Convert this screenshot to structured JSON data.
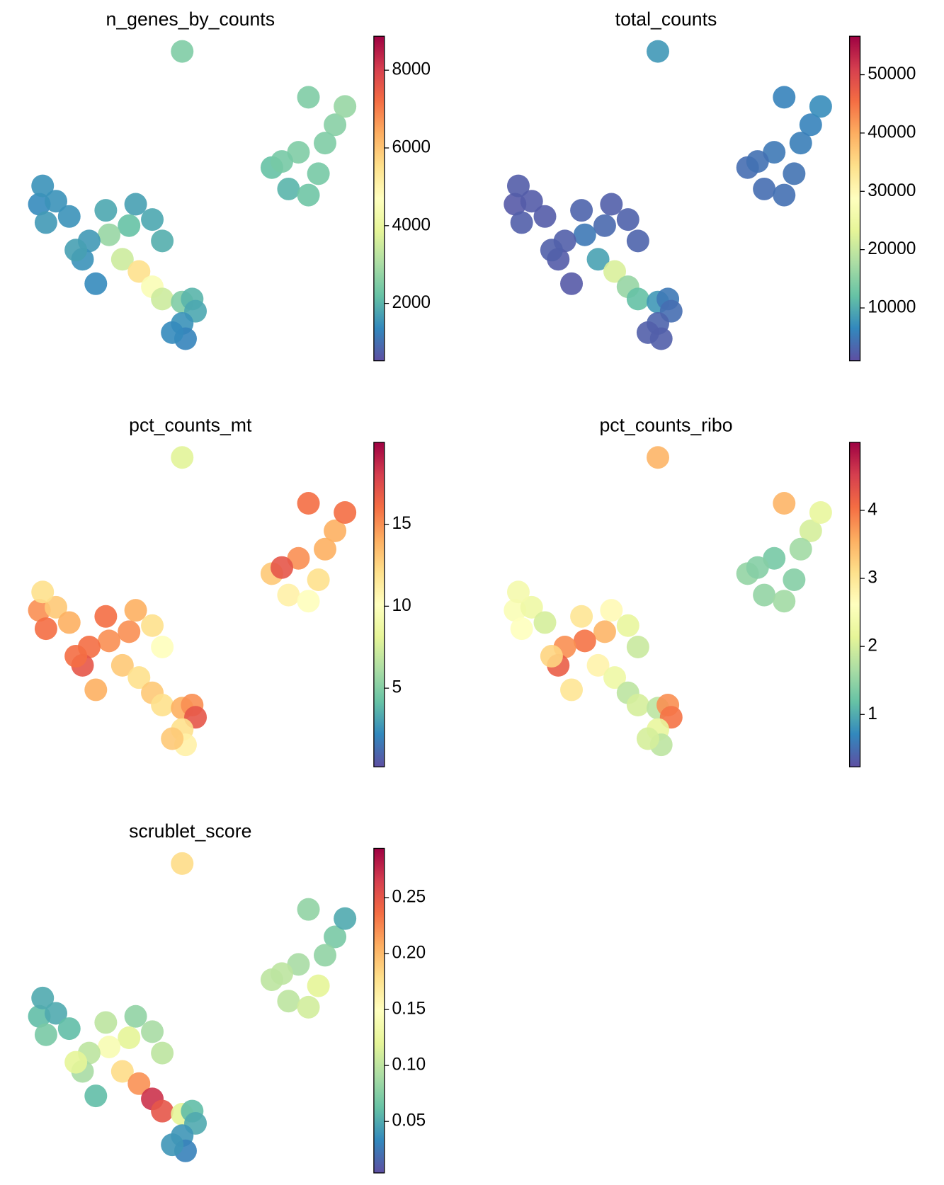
{
  "chart_data": [
    {
      "type": "scatter",
      "title": "n_genes_by_counts",
      "x": [
        4.8,
        7.5,
        8.3,
        8.9,
        8.0,
        8.6,
        7.8,
        9.4,
        9.7,
        8.6,
        9.1,
        0.5,
        1.0,
        0.7,
        1.4,
        0.6,
        3.4,
        3.9,
        3.2,
        2.6,
        4.2,
        2.0,
        1.8,
        2.2,
        3.0,
        3.5,
        3.9,
        4.2,
        4.8,
        5.1,
        5.2,
        4.8,
        4.9,
        4.5,
        2.5,
        1.6
      ],
      "y": [
        9.8,
        6.0,
        6.5,
        5.8,
        5.3,
        5.1,
        6.2,
        7.4,
        8.0,
        8.3,
        6.8,
        4.8,
        4.9,
        4.2,
        4.4,
        5.4,
        4.8,
        4.3,
        4.1,
        3.8,
        3.6,
        3.6,
        3.0,
        2.2,
        3.0,
        2.6,
        2.1,
        1.7,
        1.6,
        1.7,
        1.3,
        0.9,
        0.4,
        0.6,
        4.6,
        3.3
      ],
      "values": [
        2500,
        2200,
        2500,
        2400,
        2000,
        2300,
        2400,
        2600,
        2800,
        2500,
        2500,
        1400,
        1500,
        1600,
        1500,
        1500,
        1700,
        1800,
        2200,
        2800,
        1900,
        1600,
        1500,
        1400,
        3500,
        5500,
        4500,
        3500,
        2500,
        2000,
        1800,
        1500,
        1300,
        1400,
        1800,
        1700
      ],
      "xlim": [
        0,
        10
      ],
      "ylim": [
        0,
        10
      ],
      "clim": [
        524,
        8874
      ],
      "cticks": [
        2000,
        4000,
        6000,
        8000
      ],
      "colorscale": [
        "#5e4fa2",
        "#3288bd",
        "#66c2a5",
        "#abdda4",
        "#e6f598",
        "#ffffbf",
        "#fee08b",
        "#fdae61",
        "#f46d43",
        "#d53e4f",
        "#9e0142"
      ]
    },
    {
      "type": "scatter",
      "title": "total_counts",
      "x": [
        4.8,
        7.5,
        8.3,
        8.9,
        8.0,
        8.6,
        7.8,
        9.4,
        9.7,
        8.6,
        9.1,
        0.5,
        1.0,
        0.7,
        1.4,
        0.6,
        3.4,
        3.9,
        3.2,
        2.6,
        4.2,
        2.0,
        1.8,
        2.2,
        3.0,
        3.5,
        3.9,
        4.2,
        4.8,
        5.1,
        5.2,
        4.8,
        4.9,
        4.5,
        2.5,
        1.6
      ],
      "y": [
        9.8,
        6.0,
        6.5,
        5.8,
        5.3,
        5.1,
        6.2,
        7.4,
        8.0,
        8.3,
        6.8,
        4.8,
        4.9,
        4.2,
        4.4,
        5.4,
        4.8,
        4.3,
        4.1,
        3.8,
        3.6,
        3.6,
        3.0,
        2.2,
        3.0,
        2.6,
        2.1,
        1.7,
        1.6,
        1.7,
        1.3,
        0.9,
        0.4,
        0.6,
        4.6,
        3.3
      ],
      "values": [
        8000,
        4000,
        5000,
        4500,
        4000,
        4200,
        4300,
        6000,
        7000,
        6000,
        5500,
        2000,
        2200,
        2500,
        2200,
        2300,
        2500,
        2800,
        3500,
        5000,
        3000,
        2500,
        2200,
        2000,
        9000,
        22000,
        16000,
        12000,
        8000,
        5000,
        4000,
        3000,
        2500,
        2500,
        3000,
        2600
      ],
      "xlim": [
        0,
        10
      ],
      "ylim": [
        0,
        10
      ],
      "clim": [
        937,
        56600
      ],
      "cticks": [
        10000,
        20000,
        30000,
        40000,
        50000
      ],
      "colorscale": [
        "#5e4fa2",
        "#3288bd",
        "#66c2a5",
        "#abdda4",
        "#e6f598",
        "#ffffbf",
        "#fee08b",
        "#fdae61",
        "#f46d43",
        "#d53e4f",
        "#9e0142"
      ]
    },
    {
      "type": "scatter",
      "title": "pct_counts_mt",
      "x": [
        4.8,
        7.5,
        8.3,
        8.9,
        8.0,
        8.6,
        7.8,
        9.4,
        9.7,
        8.6,
        9.1,
        0.5,
        1.0,
        0.7,
        1.4,
        0.6,
        3.4,
        3.9,
        3.2,
        2.6,
        4.2,
        2.0,
        1.8,
        2.2,
        3.0,
        3.5,
        3.9,
        4.2,
        4.8,
        5.1,
        5.2,
        4.8,
        4.9,
        4.5,
        2.5,
        1.6
      ],
      "y": [
        9.8,
        6.0,
        6.5,
        5.8,
        5.3,
        5.1,
        6.2,
        7.4,
        8.0,
        8.3,
        6.8,
        4.8,
        4.9,
        4.2,
        4.4,
        5.4,
        4.8,
        4.3,
        4.1,
        3.8,
        3.6,
        3.6,
        3.0,
        2.2,
        3.0,
        2.6,
        2.1,
        1.7,
        1.6,
        1.7,
        1.3,
        0.9,
        0.4,
        0.6,
        4.6,
        3.3
      ],
      "values": [
        8,
        13,
        15,
        12,
        11,
        10,
        17,
        14,
        16,
        16,
        14,
        15,
        13,
        16,
        14,
        12,
        14,
        12,
        15,
        15,
        10,
        16,
        17,
        14,
        13,
        12,
        13,
        12,
        14,
        15,
        17,
        12,
        11,
        13,
        16,
        16
      ],
      "xlim": [
        0,
        10
      ],
      "ylim": [
        0,
        10
      ],
      "clim": [
        0.2,
        20.0
      ],
      "cticks": [
        5,
        10,
        15
      ],
      "colorscale": [
        "#5e4fa2",
        "#3288bd",
        "#66c2a5",
        "#abdda4",
        "#e6f598",
        "#ffffbf",
        "#fee08b",
        "#fdae61",
        "#f46d43",
        "#d53e4f",
        "#9e0142"
      ]
    },
    {
      "type": "scatter",
      "title": "pct_counts_ribo",
      "x": [
        4.8,
        7.5,
        8.3,
        8.9,
        8.0,
        8.6,
        7.8,
        9.4,
        9.7,
        8.6,
        9.1,
        0.5,
        1.0,
        0.7,
        1.4,
        0.6,
        3.4,
        3.9,
        3.2,
        2.6,
        4.2,
        2.0,
        1.8,
        2.2,
        3.0,
        3.5,
        3.9,
        4.2,
        4.8,
        5.1,
        5.2,
        4.8,
        4.9,
        4.5,
        2.5,
        1.6
      ],
      "y": [
        9.8,
        6.0,
        6.5,
        5.8,
        5.3,
        5.1,
        6.2,
        7.4,
        8.0,
        8.3,
        6.8,
        4.8,
        4.9,
        4.2,
        4.4,
        5.4,
        4.8,
        4.3,
        4.1,
        3.8,
        3.6,
        3.6,
        3.0,
        2.2,
        3.0,
        2.6,
        2.1,
        1.7,
        1.6,
        1.7,
        1.3,
        0.9,
        0.4,
        0.6,
        4.6,
        3.3
      ],
      "values": [
        3.5,
        1.5,
        1.3,
        1.4,
        1.5,
        1.6,
        1.4,
        2.0,
        2.2,
        3.5,
        1.6,
        2.5,
        2.3,
        2.6,
        2.0,
        2.4,
        2.7,
        2.2,
        3.5,
        4.0,
        1.9,
        3.8,
        4.2,
        3.0,
        2.8,
        2.3,
        1.8,
        2.0,
        1.8,
        3.8,
        4.0,
        2.2,
        1.8,
        2.0,
        3.0,
        3.2
      ],
      "xlim": [
        0,
        10
      ],
      "ylim": [
        0,
        10
      ],
      "clim": [
        0.23,
        5.0
      ],
      "cticks": [
        1,
        2,
        3,
        4
      ],
      "colorscale": [
        "#5e4fa2",
        "#3288bd",
        "#66c2a5",
        "#abdda4",
        "#e6f598",
        "#ffffbf",
        "#fee08b",
        "#fdae61",
        "#f46d43",
        "#d53e4f",
        "#9e0142"
      ]
    },
    {
      "type": "scatter",
      "title": "scrublet_score",
      "x": [
        4.8,
        7.5,
        8.3,
        8.9,
        8.0,
        8.6,
        7.8,
        9.4,
        9.7,
        8.6,
        9.1,
        0.5,
        1.0,
        0.7,
        1.4,
        0.6,
        3.4,
        3.9,
        3.2,
        2.6,
        4.2,
        2.0,
        1.8,
        2.2,
        3.0,
        3.5,
        3.9,
        4.2,
        4.8,
        5.1,
        5.2,
        4.8,
        4.9,
        4.5,
        2.5,
        1.6
      ],
      "y": [
        9.8,
        6.0,
        6.5,
        5.8,
        5.3,
        5.1,
        6.2,
        7.4,
        8.0,
        8.3,
        6.8,
        4.8,
        4.9,
        4.2,
        4.4,
        5.4,
        4.8,
        4.3,
        4.1,
        3.8,
        3.6,
        3.6,
        3.0,
        2.2,
        3.0,
        2.6,
        2.1,
        1.7,
        1.6,
        1.7,
        1.3,
        0.9,
        0.4,
        0.6,
        4.6,
        3.3
      ],
      "values": [
        0.18,
        0.1,
        0.09,
        0.12,
        0.1,
        0.11,
        0.1,
        0.07,
        0.05,
        0.08,
        0.08,
        0.06,
        0.05,
        0.07,
        0.06,
        0.05,
        0.08,
        0.09,
        0.12,
        0.14,
        0.1,
        0.1,
        0.09,
        0.06,
        0.18,
        0.22,
        0.27,
        0.25,
        0.12,
        0.06,
        0.05,
        0.04,
        0.03,
        0.04,
        0.1,
        0.12
      ],
      "xlim": [
        0,
        10
      ],
      "ylim": [
        0,
        10
      ],
      "clim": [
        0.004,
        0.294
      ],
      "cticks": [
        0.05,
        {
          "value": 0.1,
          "label": "0.10"
        },
        0.15,
        {
          "value": 0.2,
          "label": "0.20"
        },
        0.25
      ],
      "colorscale": [
        "#5e4fa2",
        "#3288bd",
        "#66c2a5",
        "#abdda4",
        "#e6f598",
        "#ffffbf",
        "#fee08b",
        "#fdae61",
        "#f46d43",
        "#d53e4f",
        "#9e0142"
      ]
    }
  ]
}
